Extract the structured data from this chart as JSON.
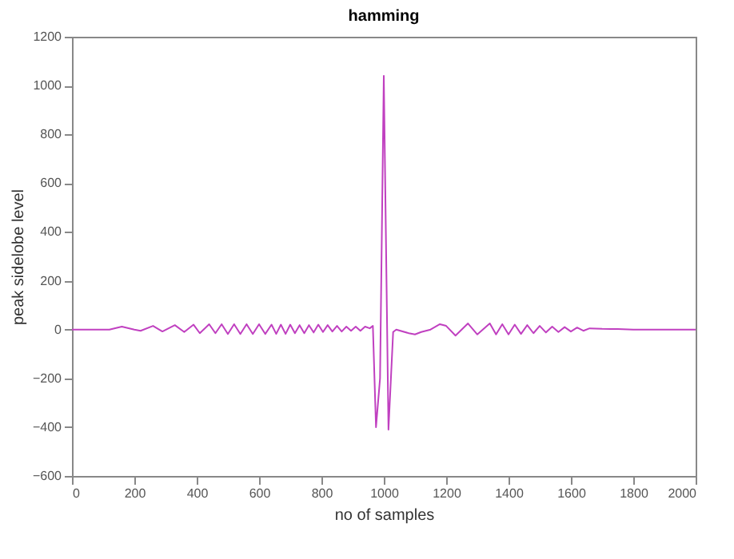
{
  "chart_data": {
    "type": "line",
    "title": "hamming",
    "xlabel": "no of samples",
    "ylabel": "peak sidelobe level",
    "x": [
      0,
      60,
      120,
      160,
      200,
      220,
      260,
      290,
      330,
      360,
      390,
      410,
      440,
      460,
      480,
      500,
      520,
      540,
      560,
      580,
      600,
      620,
      640,
      655,
      670,
      685,
      700,
      715,
      730,
      745,
      760,
      775,
      790,
      805,
      820,
      835,
      850,
      865,
      880,
      895,
      910,
      925,
      940,
      955,
      965,
      975,
      988,
      1000,
      1015,
      1030,
      1040,
      1080,
      1100,
      1120,
      1150,
      1180,
      1200,
      1230,
      1270,
      1300,
      1340,
      1360,
      1380,
      1400,
      1420,
      1440,
      1460,
      1480,
      1500,
      1520,
      1540,
      1560,
      1580,
      1600,
      1620,
      1640,
      1660,
      1700,
      1750,
      1800,
      2000
    ],
    "series": [
      {
        "color": "#c040c0",
        "values": [
          0,
          0,
          0,
          12,
          0,
          -5,
          15,
          -8,
          18,
          -10,
          20,
          -15,
          22,
          -15,
          22,
          -18,
          22,
          -18,
          22,
          -18,
          22,
          -18,
          20,
          -18,
          20,
          -18,
          20,
          -15,
          18,
          -15,
          18,
          -12,
          20,
          -10,
          18,
          -8,
          15,
          -8,
          12,
          -5,
          12,
          -5,
          12,
          5,
          15,
          -400,
          -200,
          1040,
          -410,
          -10,
          0,
          -15,
          -20,
          -10,
          0,
          22,
          15,
          -25,
          25,
          -20,
          25,
          -20,
          22,
          -20,
          20,
          -18,
          18,
          -15,
          15,
          -12,
          12,
          -10,
          10,
          -8,
          8,
          -5,
          5,
          3,
          2,
          0,
          0
        ]
      }
    ],
    "xlim": [
      0,
      2000
    ],
    "xticks": [
      0,
      200,
      400,
      600,
      800,
      1000,
      1200,
      1400,
      1600,
      1800,
      2000
    ],
    "ylim": [
      -600,
      1200
    ],
    "yticks": [
      -600,
      -400,
      -200,
      0,
      200,
      400,
      600,
      800,
      1000,
      1200
    ],
    "grid": false,
    "marker": "none",
    "line_style": "solid"
  }
}
